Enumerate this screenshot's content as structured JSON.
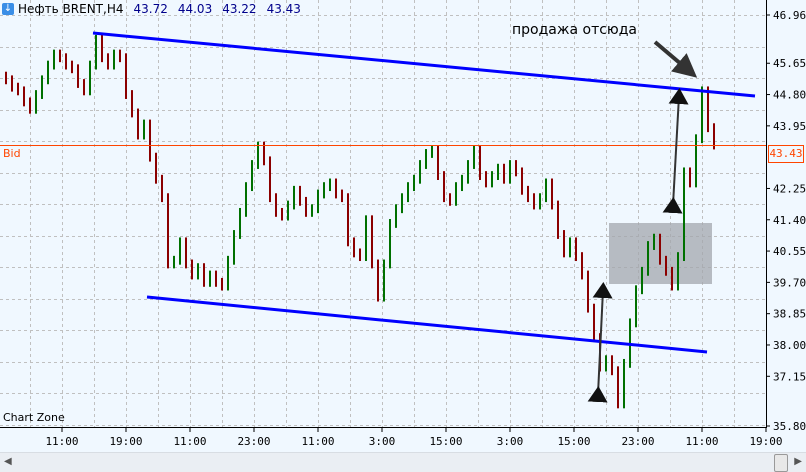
{
  "header": {
    "symbol": "Нефть BRENT,H4",
    "open": "43.72",
    "high": "44.03",
    "low": "43.22",
    "close": "43.43",
    "icon": "arrow-down-icon"
  },
  "annotation_text": "продажа отсюда",
  "bid_label": "Bid",
  "bid_price": "43.43",
  "watermark": "Chart Zone",
  "colors": {
    "background": "#f0f8ff",
    "bull": "#007000",
    "bear": "#8b0000",
    "channel": "#0000ff",
    "bid": "#ff4500",
    "zone": "#a3a7ae",
    "grid": "#c0c0c0"
  },
  "chart_data": {
    "type": "bar",
    "title": "Нефть BRENT,H4",
    "ylim": [
      35.8,
      46.96
    ],
    "y_ticks": [
      "46.96",
      "45.65",
      "44.80",
      "43.95",
      "42.25",
      "41.40",
      "40.55",
      "39.70",
      "38.85",
      "38.00",
      "37.15",
      "35.80"
    ],
    "x_ticks": [
      "11:00",
      "19:00",
      "11:00",
      "23:00",
      "11:00",
      "3:00",
      "15:00",
      "3:00",
      "15:00",
      "23:00",
      "11:00",
      "19:00"
    ],
    "grid": true,
    "closes": [
      45.2,
      45.0,
      44.9,
      44.6,
      44.4,
      44.8,
      45.2,
      45.6,
      45.9,
      45.8,
      45.6,
      45.5,
      45.1,
      44.9,
      45.6,
      46.3,
      45.8,
      45.6,
      45.9,
      45.8,
      44.8,
      44.3,
      43.7,
      44.0,
      43.1,
      42.5,
      42.0,
      40.2,
      40.3,
      40.8,
      40.2,
      39.9,
      40.1,
      39.7,
      39.9,
      39.7,
      39.6,
      40.3,
      41.0,
      41.6,
      42.3,
      42.9,
      43.4,
      43.0,
      42.0,
      41.6,
      41.5,
      41.8,
      42.2,
      41.9,
      41.6,
      41.7,
      42.1,
      42.3,
      42.4,
      42.1,
      42.0,
      40.8,
      40.5,
      40.4,
      41.4,
      40.2,
      39.3,
      40.2,
      41.3,
      41.7,
      42.0,
      42.3,
      42.5,
      42.9,
      43.2,
      43.3,
      42.6,
      42.0,
      41.9,
      42.3,
      42.5,
      42.9,
      43.3,
      42.6,
      42.4,
      42.6,
      42.8,
      42.5,
      42.9,
      42.7,
      42.2,
      42.0,
      41.8,
      42.0,
      42.4,
      41.8,
      41.0,
      40.5,
      40.8,
      40.4,
      39.9,
      39.0,
      38.2,
      37.4,
      37.6,
      37.3,
      36.4,
      37.5,
      38.6,
      39.5,
      40.0,
      40.7,
      40.9,
      40.3,
      40.0,
      39.6,
      40.4,
      42.7,
      42.4,
      43.6,
      44.9,
      43.9,
      43.43
    ]
  }
}
